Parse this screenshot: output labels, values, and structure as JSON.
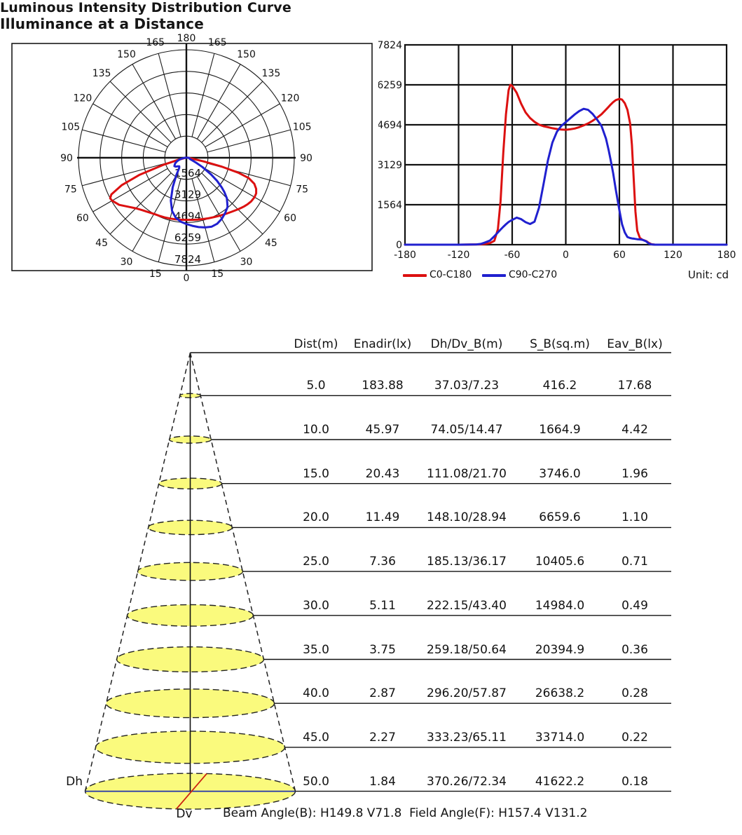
{
  "chart_data": [
    {
      "id": "luminous-intensity-distribution",
      "type": "line",
      "title": "Luminous Intensity Distribution Curve",
      "unit_label": "Unit: cd",
      "x_angles": [
        -180,
        -120,
        -100,
        -95,
        -90,
        -85,
        -80,
        -76,
        -73,
        -70,
        -67,
        -64,
        -62,
        -60,
        -55,
        -50,
        -45,
        -40,
        -35,
        -30,
        -25,
        -20,
        -15,
        -10,
        -5,
        0,
        5,
        10,
        15,
        20,
        25,
        30,
        35,
        40,
        45,
        48,
        50,
        53,
        56,
        60,
        63,
        66,
        69,
        72,
        74,
        76,
        78,
        80,
        83,
        86,
        90,
        93,
        96,
        100,
        120,
        180
      ],
      "series": [
        {
          "name": "C0-C180",
          "color": "#dc1010",
          "values": [
            0,
            0,
            10,
            15,
            30,
            60,
            150,
            600,
            1700,
            3600,
            5100,
            6050,
            6259,
            6220,
            5950,
            5520,
            5180,
            4960,
            4810,
            4700,
            4640,
            4600,
            4560,
            4530,
            4510,
            4500,
            4520,
            4550,
            4600,
            4670,
            4750,
            4850,
            4970,
            5110,
            5290,
            5400,
            5480,
            5580,
            5660,
            5710,
            5680,
            5540,
            5280,
            4750,
            3900,
            2600,
            1300,
            550,
            260,
            190,
            140,
            70,
            20,
            0,
            0,
            0
          ]
        },
        {
          "name": "C90-C270",
          "color": "#2020cf",
          "values": [
            0,
            0,
            10,
            30,
            90,
            160,
            330,
            480,
            590,
            700,
            800,
            890,
            930,
            970,
            1060,
            1000,
            880,
            810,
            900,
            1450,
            2350,
            3300,
            4000,
            4420,
            4650,
            4800,
            4950,
            5100,
            5230,
            5320,
            5280,
            5120,
            4900,
            4650,
            4150,
            3700,
            3350,
            2800,
            2150,
            1350,
            800,
            480,
            300,
            260,
            245,
            235,
            225,
            215,
            205,
            190,
            130,
            40,
            10,
            0,
            0,
            0
          ]
        }
      ],
      "cartesian": {
        "xlim": [
          -180,
          180
        ],
        "ylim": [
          0,
          7824
        ],
        "x_ticks": [
          -180,
          -120,
          -60,
          0,
          60,
          120,
          180
        ],
        "y_ticks": [
          0,
          1564,
          3129,
          4694,
          6259,
          7824
        ],
        "grid": true,
        "legend_position": "bottom-left"
      },
      "polar": {
        "angle_ticks": [
          0,
          15,
          30,
          45,
          60,
          75,
          90,
          105,
          120,
          135,
          150,
          165,
          180
        ],
        "radial_ticks": [
          1564,
          3129,
          4694,
          6259,
          7824
        ],
        "r_max": 7824,
        "zero_direction": "down"
      }
    },
    {
      "id": "illuminance-at-a-distance",
      "type": "table",
      "title": "Illuminance at a Distance",
      "columns": [
        "Dist(m)",
        "Enadir(lx)",
        "Dh/Dv_B(m)",
        "S_B(sq.m)",
        "Eav_B(lx)"
      ],
      "rows": [
        [
          "5.0",
          "183.88",
          "37.03/7.23",
          "416.2",
          "17.68"
        ],
        [
          "10.0",
          "45.97",
          "74.05/14.47",
          "1664.9",
          "4.42"
        ],
        [
          "15.0",
          "20.43",
          "111.08/21.70",
          "3746.0",
          "1.96"
        ],
        [
          "20.0",
          "11.49",
          "148.10/28.94",
          "6659.6",
          "1.10"
        ],
        [
          "25.0",
          "7.36",
          "185.13/36.17",
          "10405.6",
          "0.71"
        ],
        [
          "30.0",
          "5.11",
          "222.15/43.40",
          "14984.0",
          "0.49"
        ],
        [
          "35.0",
          "3.75",
          "259.18/50.64",
          "20394.9",
          "0.36"
        ],
        [
          "40.0",
          "2.87",
          "296.20/57.87",
          "26638.2",
          "0.28"
        ],
        [
          "45.0",
          "2.27",
          "333.23/65.11",
          "33714.0",
          "0.22"
        ],
        [
          "50.0",
          "1.84",
          "370.26/72.34",
          "41622.2",
          "0.18"
        ]
      ],
      "cone": {
        "axis_h_label": "Dh",
        "axis_v_label": "Dv",
        "ellipse_fill": "#fafa7d",
        "ellipse_stroke": "#222222",
        "dh_line_color": "#2233aa",
        "dv_line_color": "#cc2211"
      },
      "footer": "Beam Angle(B): H149.8 V71.8  Field Angle(F): H157.4 V131.2"
    }
  ]
}
